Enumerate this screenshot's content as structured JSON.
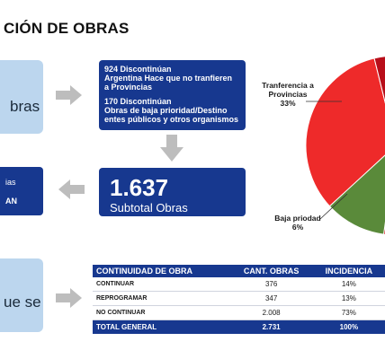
{
  "title": "CIÓN DE OBRAS",
  "left_boxes": {
    "top_text": "bras",
    "middle_line1": "ias",
    "middle_line2": "AN",
    "bottom_text": "ue se"
  },
  "info_box": {
    "line1": "924 Discontinúan",
    "line2": "Argentina Hace que no tranfieren",
    "line3": "a Provincias",
    "line4": "170 Discontinúan",
    "line5": "Obras de baja prioridad/Destino",
    "line6": "entes públicos y otros organismos"
  },
  "subtotal": {
    "number": "1.637",
    "label": "Subtotal Obras"
  },
  "chart_data": [
    {
      "type": "pie",
      "slices": [
        {
          "label": "Tranferencia a Provincias",
          "value": 33,
          "value_label": "33%",
          "color": "#ee2a2a"
        },
        {
          "label": "Baja priodad",
          "value": 6,
          "value_label": "6%",
          "color": "#b80e1a"
        },
        {
          "label": "",
          "value": 50,
          "color": "#d8131f"
        },
        {
          "label": "",
          "value": 11,
          "color": "#5a8a3a"
        }
      ],
      "labels": {
        "transfer_line1": "Tranferencia a",
        "transfer_line2": "Provincias",
        "transfer_pct": "33%",
        "baja_line1": "Baja priodad",
        "baja_pct": "6%"
      }
    },
    {
      "type": "table",
      "columns": [
        "CONTINUIDAD DE OBRA",
        "CANT. OBRAS",
        "INCIDENCIA"
      ],
      "rows": [
        [
          "CONTINUAR",
          "376",
          "14%"
        ],
        [
          "REPROGRAMAR",
          "347",
          "13%"
        ],
        [
          "NO CONTINUAR",
          "2.008",
          "73%"
        ]
      ],
      "total": [
        "TOTAL GENERAL",
        "2.731",
        "100%"
      ]
    }
  ],
  "colors": {
    "navy": "#17388f",
    "light_blue": "#bcd6ee",
    "arrow_gray": "#bdbdbd"
  }
}
